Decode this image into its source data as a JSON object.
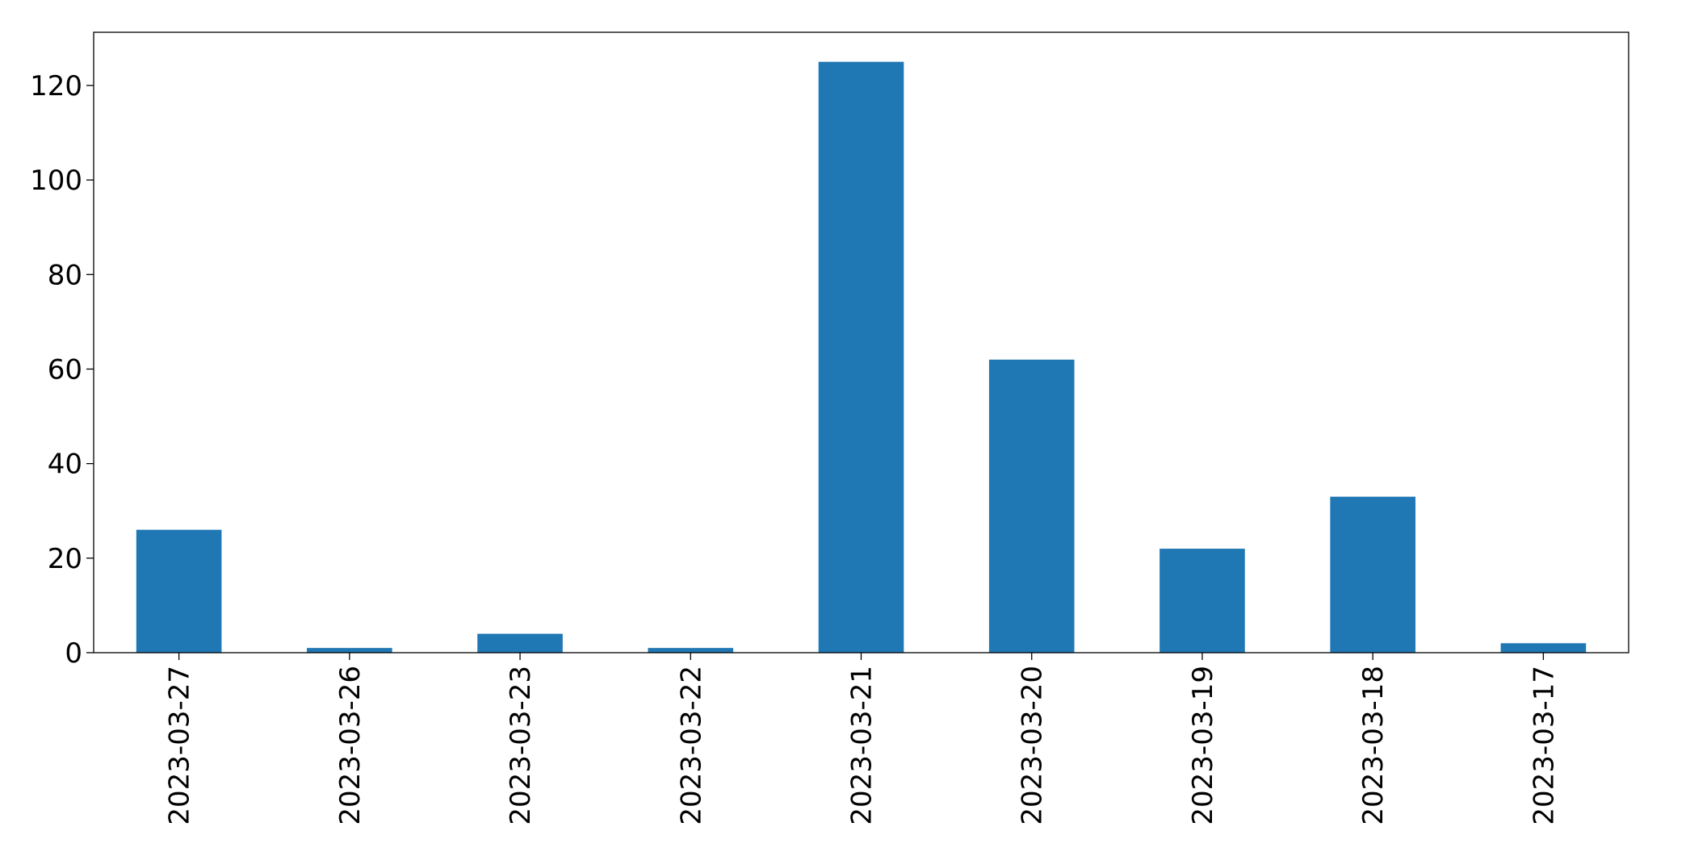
{
  "chart_data": {
    "type": "bar",
    "categories": [
      "2023-03-27",
      "2023-03-26",
      "2023-03-23",
      "2023-03-22",
      "2023-03-21",
      "2023-03-20",
      "2023-03-19",
      "2023-03-18",
      "2023-03-17"
    ],
    "values": [
      26,
      1,
      4,
      1,
      125,
      62,
      22,
      33,
      2
    ],
    "color": "#1f77b4",
    "ylim": [
      0,
      131.25
    ],
    "yticks": [
      0,
      20,
      40,
      60,
      80,
      100,
      120
    ],
    "grid": false
  }
}
